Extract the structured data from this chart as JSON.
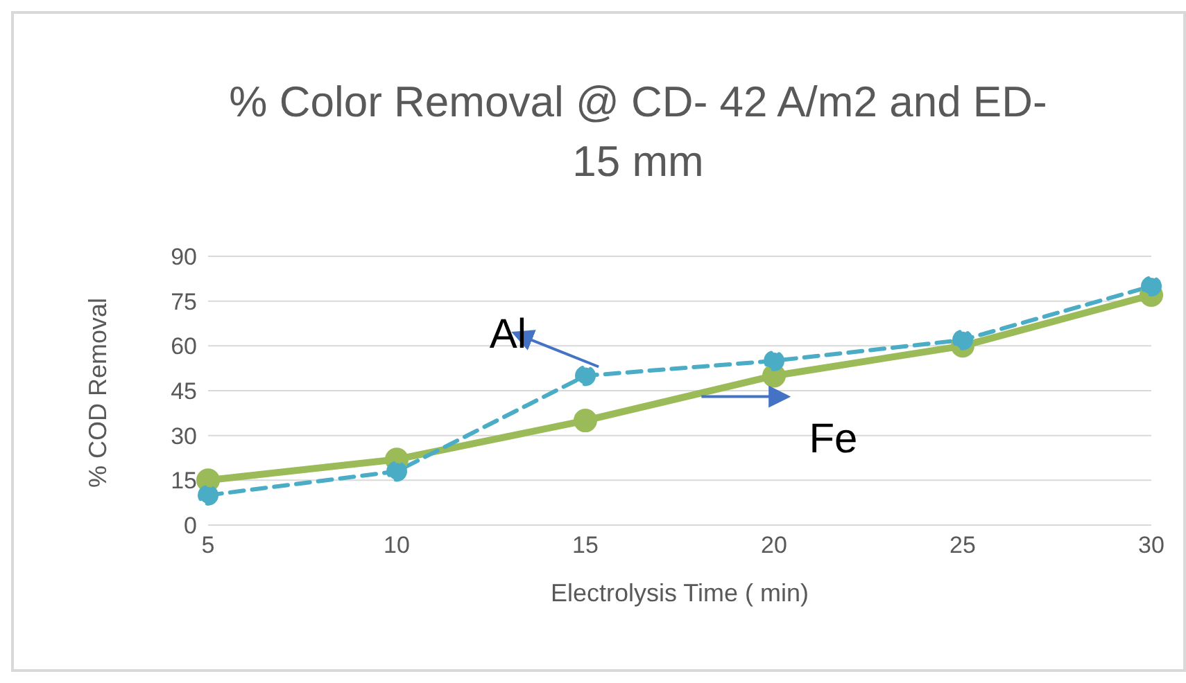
{
  "chart_data": {
    "type": "line",
    "title": "% Color Removal @ CD- 42 A/m2 and ED- 15 mm",
    "xlabel": "Electrolysis Time ( min)",
    "ylabel": "%  COD Removal",
    "categories": [
      "5",
      "10",
      "15",
      "20",
      "25",
      "30"
    ],
    "series": [
      {
        "name": "Fe",
        "color": "#9bbb59",
        "values": [
          15,
          22,
          35,
          50,
          60,
          77
        ],
        "line_style": "solid"
      },
      {
        "name": "Al",
        "color": "#4bacc6",
        "values": [
          10,
          18,
          50,
          55,
          62,
          80
        ],
        "line_style": "dashed"
      }
    ],
    "ylim": [
      0,
      90
    ],
    "yticks": [
      0,
      15,
      30,
      45,
      60,
      75,
      90
    ],
    "grid": "y",
    "legend": false,
    "marker": "circle"
  }
}
